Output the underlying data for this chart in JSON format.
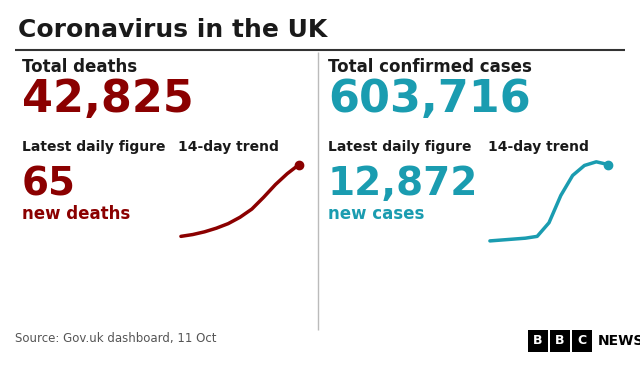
{
  "title": "Coronavirus in the UK",
  "bg_color": "#ffffff",
  "title_color": "#1a1a1a",
  "divider_color": "#333333",
  "left_panel": {
    "label": "Total deaths",
    "total": "42,825",
    "total_color": "#8b0000",
    "daily_label": "Latest daily figure",
    "trend_label": "14-day trend",
    "daily_value": "65",
    "daily_sub": "new deaths",
    "daily_color": "#8b0000",
    "trend_color": "#8b0000",
    "trend_x": [
      0,
      1,
      2,
      3,
      4,
      5,
      6,
      7,
      8,
      9,
      10
    ],
    "trend_y": [
      0.15,
      0.17,
      0.2,
      0.24,
      0.29,
      0.36,
      0.45,
      0.58,
      0.72,
      0.84,
      0.94
    ]
  },
  "right_panel": {
    "label": "Total confirmed cases",
    "total": "603,716",
    "total_color": "#1a9cb0",
    "daily_label": "Latest daily figure",
    "trend_label": "14-day trend",
    "daily_value": "12,872",
    "daily_sub": "new cases",
    "daily_color": "#1a9cb0",
    "trend_color": "#1a9cb0",
    "trend_x": [
      0,
      1,
      2,
      3,
      4,
      5,
      6,
      7,
      8,
      9,
      10
    ],
    "trend_y": [
      0.1,
      0.11,
      0.12,
      0.13,
      0.15,
      0.3,
      0.6,
      0.82,
      0.93,
      0.97,
      0.94
    ]
  },
  "source_text": "Source: Gov.uk dashboard, 11 Oct",
  "source_color": "#555555",
  "title_fontsize": 18,
  "label_fontsize": 12,
  "total_fontsize": 32,
  "daily_meta_fontsize": 10,
  "daily_value_fontsize": 28,
  "daily_sub_fontsize": 12,
  "source_fontsize": 8.5
}
